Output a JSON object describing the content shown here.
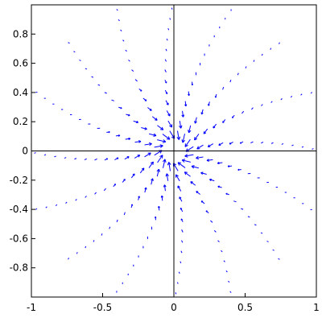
{
  "chart_data": {
    "type": "vector-field",
    "title": "",
    "xlabel": "",
    "ylabel": "",
    "xlim": [
      -1,
      1
    ],
    "ylim": [
      -1,
      1
    ],
    "x_ticks": [
      {
        "value": -1,
        "label": "-1"
      },
      {
        "value": -0.5,
        "label": "-0.5"
      },
      {
        "value": 0,
        "label": "0"
      },
      {
        "value": 0.5,
        "label": "0.5"
      },
      {
        "value": 1,
        "label": "1"
      }
    ],
    "y_ticks": [
      {
        "value": 0.8,
        "label": "0.8"
      },
      {
        "value": 0.6,
        "label": "0.6"
      },
      {
        "value": 0.4,
        "label": "0.4"
      },
      {
        "value": 0.2,
        "label": "0.2"
      },
      {
        "value": 0,
        "label": "0"
      },
      {
        "value": -0.2,
        "label": "-0.2"
      },
      {
        "value": -0.4,
        "label": "-0.4"
      },
      {
        "value": -0.6,
        "label": "-0.6"
      },
      {
        "value": -0.8,
        "label": "-0.8"
      }
    ],
    "field": {
      "description_formula": "radial inward flow with slight rotation",
      "ray_count": 16,
      "ray_start_radius": 0.14,
      "ray_end_radius": 1.05,
      "ray_twist": 0.35,
      "arrows_per_ray": 14
    },
    "grid": false,
    "arrow_color": "#0000ff"
  }
}
